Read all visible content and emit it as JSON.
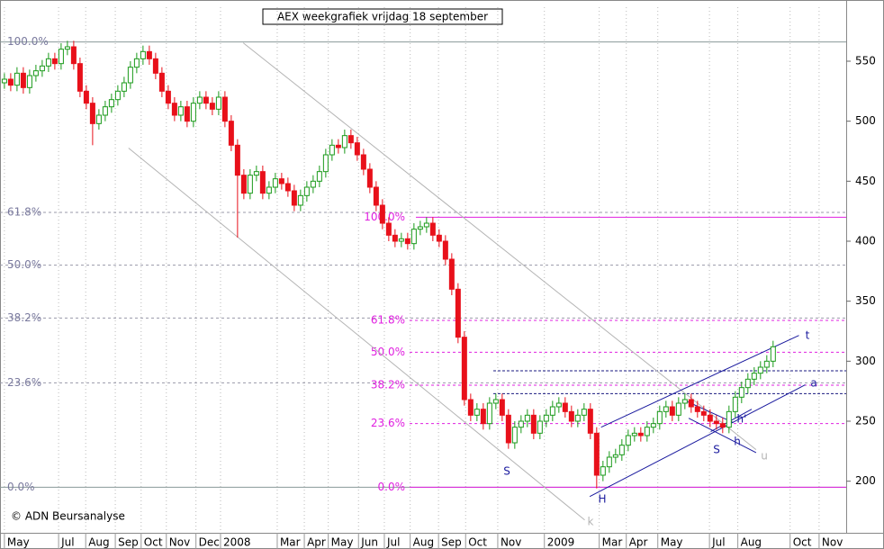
{
  "chart_data": {
    "type": "candlestick",
    "title": "AEX weekgrafiek vrijdag 18 september",
    "copyright": "© ADN Beursanalyse",
    "up_color": "#1a9a1a",
    "down_color": "#e8101a",
    "x": [
      0,
      1,
      2,
      3,
      4,
      5,
      6,
      7,
      8,
      9,
      10,
      11,
      12,
      13,
      14,
      15,
      16,
      17,
      18,
      19,
      20,
      21,
      22,
      23,
      24,
      25,
      26,
      27,
      28,
      29,
      30,
      31,
      32,
      33,
      34,
      35,
      36,
      37,
      38,
      39,
      40,
      41,
      42,
      43,
      44,
      45,
      46,
      47,
      48,
      49,
      50,
      51,
      52,
      53,
      54,
      55,
      56,
      57,
      58,
      59,
      60,
      61,
      62,
      63,
      64,
      65,
      66,
      67,
      68,
      69,
      70,
      71,
      72,
      73,
      74,
      75,
      76,
      77,
      78,
      79,
      80,
      81,
      82,
      83,
      84,
      85,
      86,
      87,
      88,
      89,
      90,
      91,
      92,
      93,
      94,
      95,
      96,
      97,
      98,
      99,
      100,
      101,
      102,
      103,
      104,
      105,
      106,
      107,
      108,
      109,
      110,
      111,
      112,
      113,
      114,
      115,
      116,
      117,
      118,
      119,
      120,
      121,
      122
    ],
    "open": [
      532,
      535,
      530,
      540,
      528,
      538,
      542,
      546,
      552,
      548,
      560,
      562,
      548,
      525,
      515,
      498,
      505,
      512,
      518,
      525,
      532,
      545,
      552,
      558,
      552,
      540,
      525,
      515,
      505,
      512,
      500,
      515,
      520,
      515,
      510,
      520,
      500,
      480,
      455,
      440,
      455,
      458,
      440,
      445,
      452,
      448,
      442,
      430,
      438,
      445,
      450,
      458,
      472,
      480,
      478,
      488,
      482,
      472,
      460,
      445,
      430,
      415,
      405,
      400,
      402,
      398,
      410,
      412,
      415,
      405,
      400,
      385,
      360,
      320,
      268,
      255,
      260,
      248,
      265,
      268,
      255,
      232,
      245,
      250,
      255,
      240,
      250,
      255,
      262,
      265,
      258,
      250,
      255,
      260,
      240,
      205,
      212,
      220,
      222,
      230,
      238,
      240,
      238,
      245,
      248,
      258,
      262,
      255,
      265,
      268,
      262,
      258,
      255,
      250,
      248,
      245,
      258,
      270,
      278,
      285,
      290,
      295,
      300
    ],
    "high": [
      540,
      540,
      545,
      545,
      543,
      547,
      551,
      557,
      557,
      565,
      567,
      567,
      553,
      530,
      520,
      510,
      517,
      523,
      530,
      537,
      550,
      557,
      563,
      563,
      557,
      545,
      530,
      520,
      517,
      517,
      520,
      525,
      525,
      520,
      525,
      525,
      505,
      485,
      460,
      460,
      463,
      463,
      450,
      457,
      457,
      453,
      447,
      443,
      450,
      455,
      463,
      477,
      485,
      485,
      493,
      493,
      487,
      477,
      465,
      450,
      435,
      420,
      410,
      407,
      407,
      415,
      417,
      420,
      420,
      410,
      405,
      390,
      365,
      325,
      273,
      265,
      265,
      270,
      273,
      273,
      260,
      250,
      255,
      260,
      260,
      255,
      260,
      267,
      270,
      270,
      263,
      260,
      265,
      265,
      245,
      217,
      225,
      227,
      235,
      243,
      245,
      245,
      250,
      253,
      263,
      267,
      267,
      270,
      273,
      273,
      267,
      263,
      260,
      255,
      253,
      263,
      275,
      283,
      290,
      295,
      300,
      305,
      317
    ],
    "low": [
      527,
      525,
      525,
      523,
      523,
      533,
      537,
      541,
      543,
      543,
      555,
      543,
      520,
      510,
      480,
      493,
      500,
      507,
      513,
      520,
      527,
      540,
      547,
      547,
      535,
      520,
      510,
      500,
      500,
      495,
      495,
      510,
      510,
      505,
      505,
      495,
      475,
      403,
      435,
      435,
      450,
      435,
      435,
      440,
      443,
      437,
      425,
      425,
      433,
      440,
      445,
      453,
      467,
      473,
      473,
      477,
      467,
      455,
      440,
      425,
      410,
      400,
      395,
      395,
      393,
      393,
      405,
      407,
      400,
      395,
      380,
      355,
      315,
      263,
      250,
      250,
      243,
      243,
      260,
      250,
      227,
      227,
      240,
      245,
      235,
      235,
      245,
      250,
      257,
      253,
      245,
      245,
      250,
      235,
      194,
      200,
      207,
      215,
      217,
      225,
      233,
      233,
      233,
      240,
      243,
      253,
      250,
      250,
      260,
      257,
      253,
      250,
      245,
      243,
      240,
      240,
      253,
      265,
      273,
      280,
      285,
      290,
      295
    ],
    "close": [
      535,
      530,
      540,
      528,
      538,
      542,
      546,
      552,
      548,
      560,
      562,
      548,
      525,
      515,
      498,
      505,
      512,
      518,
      525,
      532,
      545,
      552,
      558,
      552,
      540,
      525,
      515,
      505,
      512,
      500,
      515,
      520,
      515,
      510,
      520,
      500,
      480,
      455,
      440,
      455,
      458,
      440,
      445,
      452,
      448,
      442,
      430,
      438,
      445,
      450,
      458,
      472,
      480,
      478,
      488,
      482,
      472,
      460,
      445,
      430,
      415,
      405,
      400,
      402,
      398,
      410,
      412,
      415,
      405,
      400,
      385,
      360,
      320,
      268,
      255,
      260,
      248,
      265,
      268,
      255,
      232,
      245,
      250,
      255,
      240,
      250,
      255,
      262,
      265,
      258,
      250,
      255,
      260,
      240,
      205,
      212,
      220,
      222,
      230,
      238,
      240,
      238,
      245,
      248,
      258,
      262,
      255,
      265,
      268,
      262,
      258,
      255,
      250,
      248,
      245,
      258,
      270,
      278,
      285,
      290,
      295,
      300,
      312
    ],
    "xlim": [
      -0.7,
      133.6
    ],
    "xticks": [
      {
        "value": 0,
        "label": "May"
      },
      {
        "value": 8.6,
        "label": "Jul"
      },
      {
        "value": 12.9,
        "label": "Aug"
      },
      {
        "value": 17.6,
        "label": "Sep"
      },
      {
        "value": 21.7,
        "label": "Oct"
      },
      {
        "value": 25.7,
        "label": "Nov"
      },
      {
        "value": 30.4,
        "label": "Dec"
      },
      {
        "value": 34.3,
        "label": "2008"
      },
      {
        "value": 43.3,
        "label": "Mar"
      },
      {
        "value": 47.6,
        "label": "Apr"
      },
      {
        "value": 51.4,
        "label": "May"
      },
      {
        "value": 56.2,
        "label": "Jun"
      },
      {
        "value": 60.3,
        "label": "Jul"
      },
      {
        "value": 64.4,
        "label": "Aug"
      },
      {
        "value": 68.9,
        "label": "Sep"
      },
      {
        "value": 73.2,
        "label": "Oct"
      },
      {
        "value": 78.3,
        "label": "Nov"
      },
      {
        "value": 85.7,
        "label": "2009"
      },
      {
        "value": 94.4,
        "label": "Mar"
      },
      {
        "value": 98.7,
        "label": "Apr"
      },
      {
        "value": 103.7,
        "label": "May"
      },
      {
        "value": 111.9,
        "label": "Jul"
      },
      {
        "value": 116.4,
        "label": "Aug"
      },
      {
        "value": 124.7,
        "label": "Oct"
      },
      {
        "value": 129.3,
        "label": "Nov"
      }
    ],
    "ylim": [
      157,
      595
    ],
    "yticks": [
      200,
      250,
      300,
      350,
      400,
      450,
      500,
      550
    ],
    "fib_levels_1": {
      "color": "#7a7a9e",
      "levels": [
        {
          "price": 566,
          "label": "100.0%"
        },
        {
          "price": 424,
          "label": "61.8%"
        },
        {
          "price": 380,
          "label": "50.0%"
        },
        {
          "price": 336,
          "label": "38.2%"
        },
        {
          "price": 282,
          "label": "23.6%"
        },
        {
          "price": 195,
          "label": "0.0%"
        }
      ]
    },
    "fib_levels_2": {
      "color": "#e020e0",
      "levels": [
        {
          "price": 420,
          "label": "100.0%"
        },
        {
          "price": 334,
          "label": "61.8%"
        },
        {
          "price": 307.5,
          "label": "50.0%"
        },
        {
          "price": 280,
          "label": "38.2%"
        },
        {
          "price": 248,
          "label": "23.6%"
        },
        {
          "price": 195,
          "label": "0.0%"
        }
      ]
    },
    "support_levels": {
      "color": "#1a1a80",
      "prices": [
        292,
        273
      ]
    },
    "trendlines": [
      {
        "color": "#b4b4b4",
        "x": [
          37.9,
          119.3
        ],
        "y": [
          565.3,
          226.3
        ]
      },
      {
        "color": "#b4b4b4",
        "x": [
          19.7,
          92.1
        ],
        "y": [
          477.6,
          167.7
        ]
      },
      {
        "color": "#1a1a9e",
        "x": [
          94.7,
          126.1
        ],
        "y": [
          245,
          321.5
        ]
      },
      {
        "color": "#1a1a9e",
        "x": [
          92.9,
          127.1
        ],
        "y": [
          187.2,
          280.3
        ]
      },
      {
        "color": "#1a1a9e",
        "x": [
          107.9,
          115.7
        ],
        "y": [
          267.5,
          248.8
        ]
      },
      {
        "color": "#1a1a9e",
        "x": [
          108.6,
          119.3
        ],
        "y": [
          252.5,
          223.8
        ]
      },
      {
        "color": "#1a1a9e",
        "x": [
          112.1,
          118.6
        ],
        "y": [
          241.3,
          260
        ]
      }
    ],
    "annotations": [
      {
        "text": "S",
        "color": "#1a1a9e"
      },
      {
        "text": "H",
        "color": "#1a1a9e"
      },
      {
        "text": "S",
        "color": "#1a1a9e"
      },
      {
        "text": "h",
        "color": "#1a1a9e"
      },
      {
        "text": "h'",
        "color": "#1a1a9e"
      },
      {
        "text": "t",
        "color": "#1a1a9e"
      },
      {
        "text": "a",
        "color": "#1a1a9e"
      },
      {
        "text": "u",
        "color": "#b4b4b4"
      },
      {
        "text": "k",
        "color": "#b4b4b4"
      }
    ]
  }
}
